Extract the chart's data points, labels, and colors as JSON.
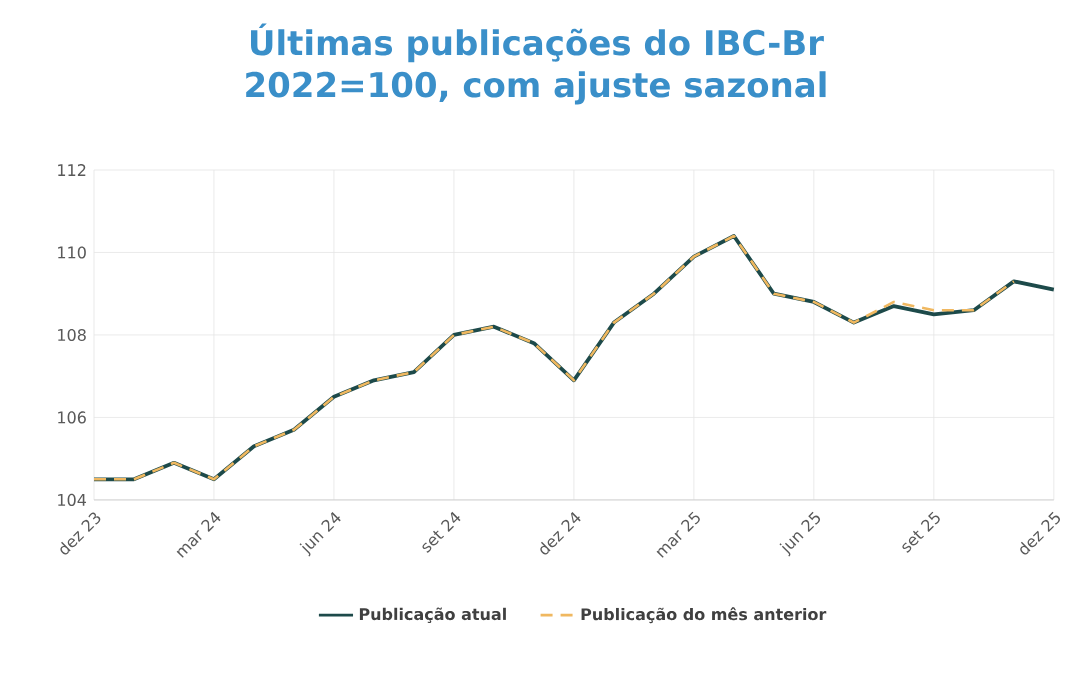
{
  "chart_data": {
    "type": "line",
    "title": "Últimas publicações do IBC-Br",
    "subtitle": "2022=100, com ajuste sazonal",
    "categories": [
      "dez 23",
      null,
      null,
      "mar 24",
      null,
      null,
      "jun 24",
      null,
      null,
      "set 24",
      null,
      null,
      "dez 24",
      null,
      null,
      "mar 25",
      null,
      null,
      "jun 25",
      null,
      null,
      "set 25",
      null,
      null,
      "dez 25"
    ],
    "series": [
      {
        "name": "Publicação atual",
        "color": "#1d4a4a",
        "line_style": "solid",
        "values": [
          104.5,
          104.5,
          104.9,
          104.5,
          105.3,
          105.7,
          106.5,
          106.9,
          107.1,
          108.0,
          108.2,
          107.8,
          106.9,
          108.3,
          109.0,
          109.9,
          110.4,
          109.0,
          108.8,
          108.3,
          108.7,
          108.5,
          108.6,
          109.3,
          109.1
        ]
      },
      {
        "name": "Publicação do mês anterior",
        "color": "#f0b860",
        "line_style": "dashed",
        "values": [
          104.5,
          104.5,
          104.9,
          104.5,
          105.3,
          105.7,
          106.5,
          106.9,
          107.1,
          108.0,
          108.2,
          107.8,
          106.9,
          108.3,
          109.0,
          109.9,
          110.4,
          109.0,
          108.8,
          108.3,
          108.8,
          108.6,
          108.6,
          109.3,
          null
        ]
      }
    ],
    "ylim": [
      104,
      112
    ],
    "yticks": [
      104,
      106,
      108,
      110,
      112
    ],
    "grid": true,
    "legend": "bottom",
    "marker": "none"
  }
}
